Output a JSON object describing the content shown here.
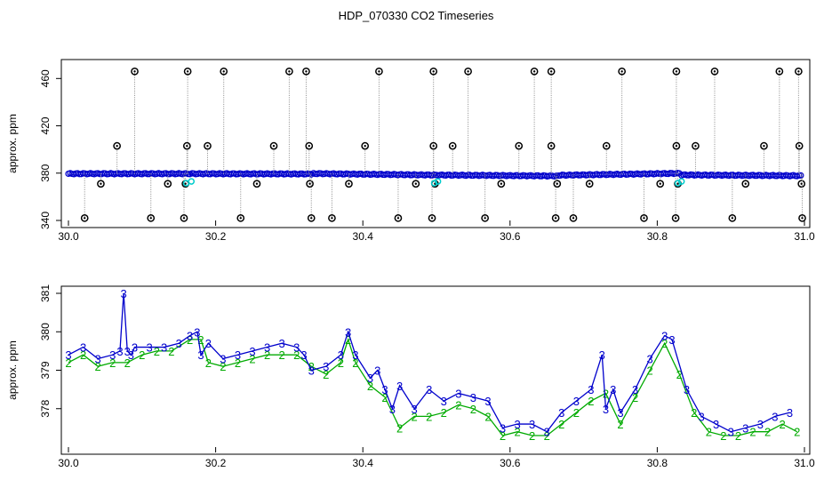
{
  "title": "HDP_070330  CO2 Timeseries",
  "colors": {
    "spike": "#000000",
    "main": "#0000cc",
    "cyan": "#00cccc",
    "green": "#00aa00",
    "line": "#888888"
  },
  "chart_data": [
    {
      "type": "scatter",
      "ylabel": "approx. ppm",
      "xlim": [
        30.0,
        31.0
      ],
      "ylim": [
        340,
        470
      ],
      "x_ticks": [
        "30.0",
        "30.2",
        "30.4",
        "30.6",
        "30.8",
        "31.0"
      ],
      "y_ticks": [
        "340",
        "380",
        "420",
        "460"
      ],
      "baseline_segments": [
        {
          "x": [
            30.0,
            30.165
          ],
          "y": [
            379.5,
            379.5
          ]
        },
        {
          "x": [
            30.168,
            30.33
          ],
          "y": [
            379.5,
            379.3
          ]
        },
        {
          "x": [
            30.333,
            30.497
          ],
          "y": [
            379.6,
            378.4
          ]
        },
        {
          "x": [
            30.5,
            30.663
          ],
          "y": [
            378.4,
            377.6
          ]
        },
        {
          "x": [
            30.666,
            30.83
          ],
          "y": [
            378.2,
            379.8
          ]
        },
        {
          "x": [
            30.833,
            30.995
          ],
          "y": [
            378.5,
            377.8
          ]
        }
      ],
      "spikes_high": [
        30.09,
        30.162,
        30.211,
        30.3,
        30.323,
        30.422,
        30.496,
        30.543,
        30.633,
        30.656,
        30.752,
        30.826,
        30.878,
        30.966,
        30.992
      ],
      "spikes_403": [
        30.066,
        30.161,
        30.189,
        30.279,
        30.327,
        30.403,
        30.496,
        30.522,
        30.612,
        30.656,
        30.731,
        30.826,
        30.852,
        30.945,
        30.993
      ],
      "spikes_370": [
        30.044,
        30.135,
        30.159,
        30.256,
        30.328,
        30.381,
        30.472,
        30.498,
        30.588,
        30.664,
        30.708,
        30.804,
        30.828,
        30.92,
        30.996
      ],
      "spikes_342": [
        30.022,
        30.112,
        30.157,
        30.234,
        30.33,
        30.358,
        30.448,
        30.494,
        30.566,
        30.662,
        30.686,
        30.782,
        30.825,
        30.902,
        30.997
      ],
      "cyan_points": [
        [
          30.16,
          371.5
        ],
        [
          30.167,
          373.0
        ],
        [
          30.497,
          371.5
        ],
        [
          30.502,
          373.0
        ],
        [
          30.828,
          371.5
        ],
        [
          30.833,
          373.0
        ]
      ]
    },
    {
      "type": "line",
      "ylabel": "approx. ppm",
      "xlim": [
        30.0,
        31.0
      ],
      "ylim": [
        377.0,
        381.0
      ],
      "x_ticks": [
        "30.0",
        "30.2",
        "30.4",
        "30.6",
        "30.8",
        "31.0"
      ],
      "y_ticks": [
        "378",
        "379",
        "380",
        "381"
      ],
      "series": [
        {
          "marker": "3",
          "x": [
            30.0,
            30.02,
            30.04,
            30.06,
            30.07,
            30.075,
            30.08,
            30.085,
            30.09,
            30.11,
            30.13,
            30.15,
            30.165,
            30.175,
            30.18,
            30.19,
            30.21,
            30.23,
            30.25,
            30.27,
            30.29,
            30.31,
            30.32,
            30.33,
            30.35,
            30.37,
            30.38,
            30.39,
            30.41,
            30.42,
            30.43,
            30.44,
            30.45,
            30.47,
            30.49,
            30.51,
            30.53,
            30.55,
            30.57,
            30.59,
            30.61,
            30.63,
            30.65,
            30.67,
            30.69,
            30.71,
            30.725,
            30.73,
            30.74,
            30.75,
            30.77,
            30.79,
            30.81,
            30.82,
            30.84,
            30.86,
            30.88,
            30.9,
            30.92,
            30.94,
            30.96,
            30.98
          ],
          "y": [
            379.4,
            379.6,
            379.3,
            379.4,
            379.5,
            381.0,
            379.5,
            379.4,
            379.6,
            379.6,
            379.6,
            379.7,
            379.9,
            380.0,
            379.4,
            379.7,
            379.3,
            379.4,
            379.5,
            379.6,
            379.7,
            379.6,
            379.4,
            379.0,
            379.1,
            379.4,
            380.0,
            379.4,
            378.8,
            379.0,
            378.5,
            378.0,
            378.6,
            378.0,
            378.5,
            378.2,
            378.4,
            378.3,
            378.2,
            377.5,
            377.6,
            377.6,
            377.4,
            377.9,
            378.2,
            378.5,
            379.4,
            378.0,
            378.5,
            377.9,
            378.5,
            379.3,
            379.9,
            379.8,
            378.5,
            377.8,
            377.6,
            377.4,
            377.5,
            377.6,
            377.8,
            377.9
          ]
        },
        {
          "marker": "2",
          "x": [
            30.0,
            30.02,
            30.04,
            30.06,
            30.08,
            30.1,
            30.12,
            30.14,
            30.165,
            30.18,
            30.19,
            30.21,
            30.23,
            30.25,
            30.27,
            30.29,
            30.31,
            30.33,
            30.35,
            30.37,
            30.38,
            30.39,
            30.41,
            30.43,
            30.45,
            30.47,
            30.49,
            30.51,
            30.53,
            30.55,
            30.57,
            30.59,
            30.61,
            30.63,
            30.65,
            30.67,
            30.69,
            30.71,
            30.73,
            30.75,
            30.77,
            30.79,
            30.81,
            30.83,
            30.85,
            30.87,
            30.89,
            30.91,
            30.93,
            30.95,
            30.97,
            30.99
          ],
          "y": [
            379.2,
            379.4,
            379.1,
            379.2,
            379.2,
            379.4,
            379.5,
            379.5,
            379.8,
            379.8,
            379.2,
            379.1,
            379.2,
            379.3,
            379.4,
            379.4,
            379.4,
            379.1,
            378.9,
            379.2,
            379.8,
            379.2,
            378.6,
            378.3,
            377.5,
            377.8,
            377.8,
            377.9,
            378.1,
            378.0,
            377.8,
            377.3,
            377.4,
            377.3,
            377.3,
            377.6,
            377.9,
            378.2,
            378.4,
            377.6,
            378.3,
            379.0,
            379.7,
            378.9,
            377.9,
            377.4,
            377.3,
            377.3,
            377.4,
            377.4,
            377.6,
            377.4
          ]
        }
      ]
    }
  ]
}
